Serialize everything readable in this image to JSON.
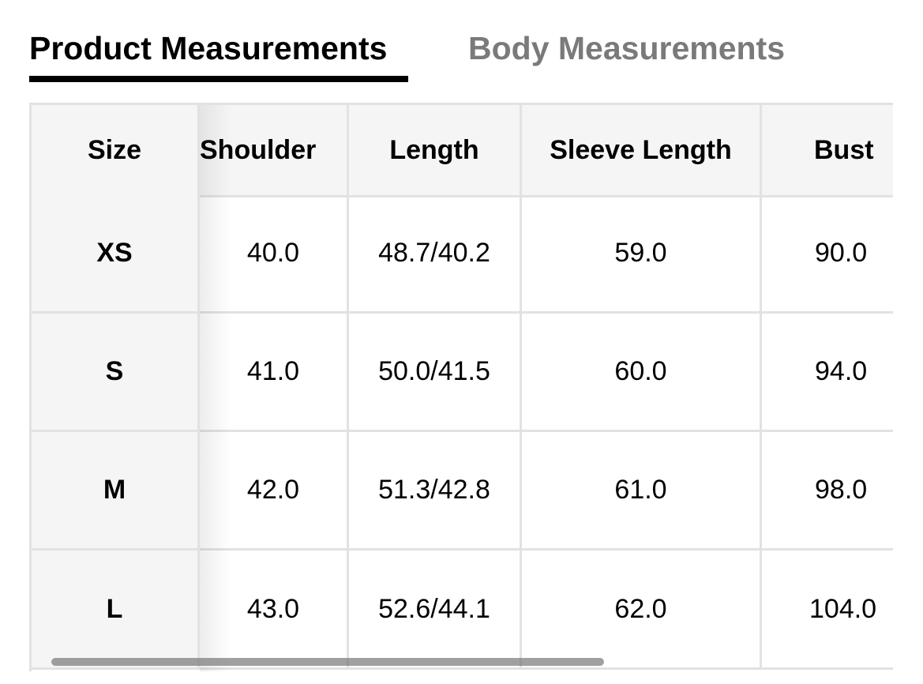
{
  "tabs": [
    {
      "label": "Product Measurements",
      "active": true
    },
    {
      "label": "Body Measurements",
      "active": false
    }
  ],
  "table": {
    "headers": [
      "Size",
      "Shoulder",
      "Length",
      "Sleeve Length",
      "Bust"
    ],
    "rows": [
      [
        "XS",
        "40.0",
        "48.7/40.2",
        "59.0",
        "90.0"
      ],
      [
        "S",
        "41.0",
        "50.0/41.5",
        "60.0",
        "94.0"
      ],
      [
        "M",
        "42.0",
        "51.3/42.8",
        "61.0",
        "98.0"
      ],
      [
        "L",
        "43.0",
        "52.6/44.1",
        "62.0",
        "104.0"
      ]
    ]
  },
  "colors": {
    "active_tab": "#000000",
    "inactive_tab": "#7a7a7a",
    "header_bg": "#f5f5f5",
    "border": "#e2e2e2"
  }
}
